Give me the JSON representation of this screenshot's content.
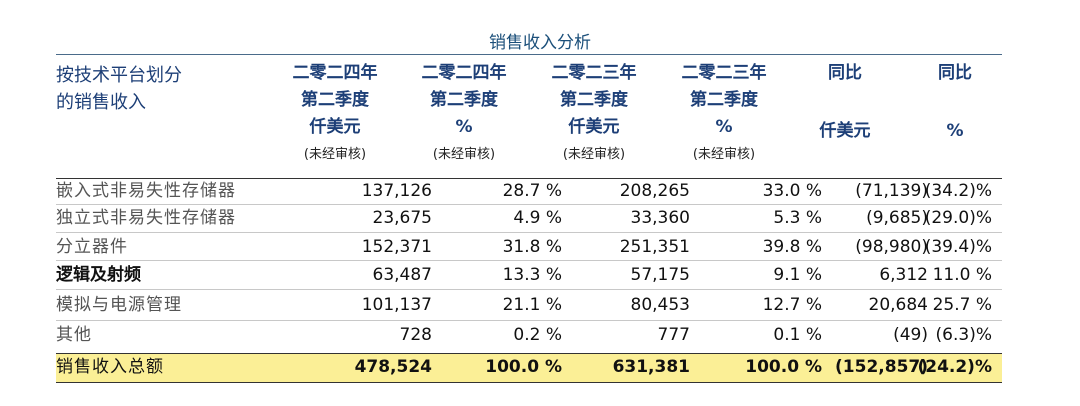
{
  "title": "销售收入分析",
  "header": {
    "row_label": [
      "按技术平台划分",
      "的销售收入"
    ],
    "columns": [
      {
        "lines": [
          "二零二四年",
          "第二季度",
          "仟美元"
        ],
        "note": "(未经审核)"
      },
      {
        "lines": [
          "二零二四年",
          "第二季度",
          "%"
        ],
        "note": "(未经审核)"
      },
      {
        "lines": [
          "二零二三年",
          "第二季度",
          "仟美元"
        ],
        "note": "(未经审核)"
      },
      {
        "lines": [
          "二零二三年",
          "第二季度",
          "%"
        ],
        "note": "(未经审核)"
      },
      {
        "lines": [
          "同比",
          "",
          "仟美元"
        ],
        "note": ""
      },
      {
        "lines": [
          "同比",
          "",
          "%"
        ],
        "note": ""
      }
    ]
  },
  "rows": [
    {
      "label": "嵌入式非易失性存储器",
      "values": [
        "137,126",
        "28.7 %",
        "208,265",
        "33.0 %",
        "(71,139)",
        "(34.2)%"
      ]
    },
    {
      "label": "独立式非易失性存储器",
      "values": [
        "23,675",
        "4.9 %",
        "33,360",
        "5.3 %",
        "(9,685)",
        "(29.0)%"
      ]
    },
    {
      "label": "分立器件",
      "values": [
        "152,371",
        "31.8 %",
        "251,351",
        "39.8 %",
        "(98,980)",
        "(39.4)%"
      ]
    },
    {
      "label": "逻辑及射频",
      "values": [
        "63,487",
        "13.3 %",
        "57,175",
        "9.1 %",
        "6,312",
        "11.0 %"
      ]
    },
    {
      "label": "模拟与电源管理",
      "values": [
        "101,137",
        "21.1 %",
        "80,453",
        "12.7 %",
        "20,684",
        "25.7 %"
      ]
    },
    {
      "label": "其他",
      "values": [
        "728",
        "0.2 %",
        "777",
        "0.1 %",
        "(49)",
        "(6.3)%"
      ]
    }
  ],
  "total": {
    "label": "销售收入总额",
    "values": [
      "478,524",
      "100.0 %",
      "631,381",
      "100.0 %",
      "(152,857)",
      "(24.2)%"
    ]
  },
  "colors": {
    "header_text": "#1d3f77",
    "total_highlight": "#fbef96"
  }
}
